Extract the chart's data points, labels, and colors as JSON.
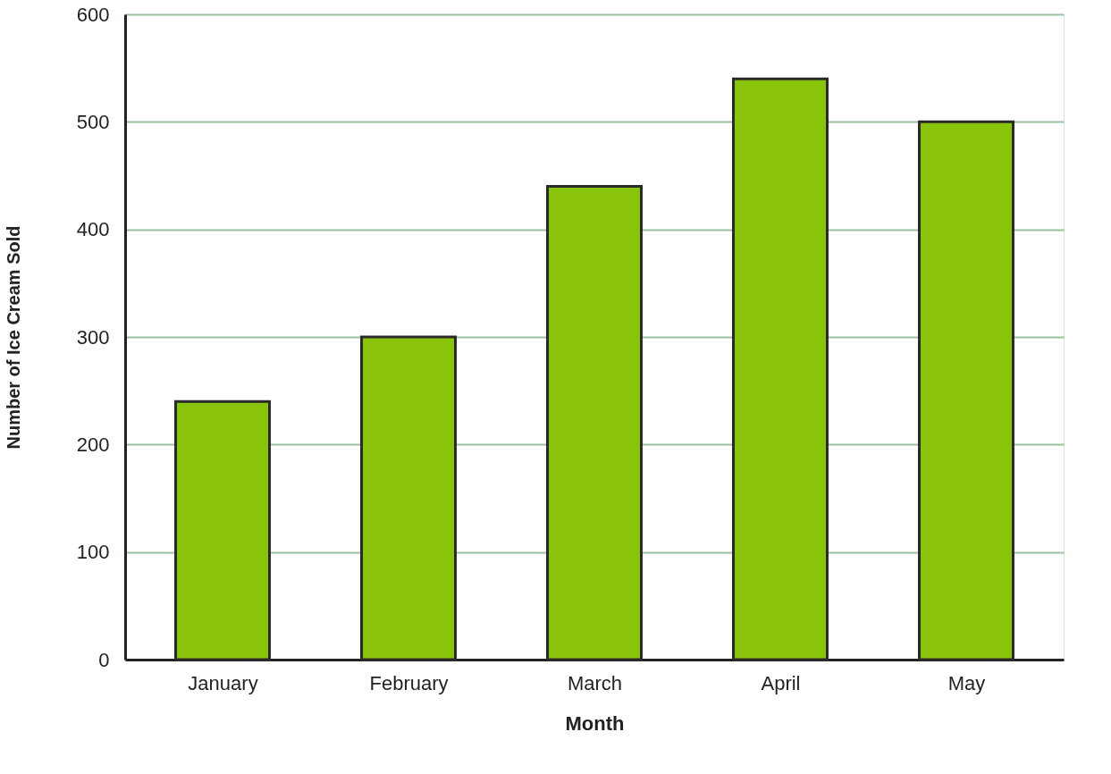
{
  "chart_data": {
    "type": "bar",
    "xlabel": "Month",
    "ylabel": "Number of Ice Cream Sold",
    "categories": [
      "January",
      "February",
      "March",
      "April",
      "May"
    ],
    "values": [
      240,
      300,
      440,
      540,
      500
    ],
    "color": "#8ac40a",
    "ylim": [
      0,
      600
    ],
    "yticks": [
      0,
      100,
      200,
      300,
      400,
      500,
      600
    ],
    "grid": "y"
  }
}
